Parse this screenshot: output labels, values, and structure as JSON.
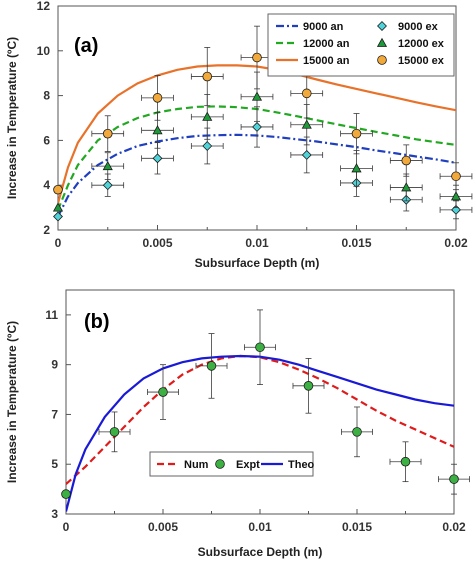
{
  "chart_data": [
    {
      "type": "line",
      "panel_label": "(a)",
      "xlabel": "Subsurface Depth (m)",
      "ylabel": "Increase in Temperature (ºC)",
      "xlim": [
        0,
        0.02
      ],
      "ylim": [
        2,
        12
      ],
      "x_ticks": [
        0,
        0.005,
        0.01,
        0.015,
        0.02
      ],
      "x_tick_labels": [
        "0",
        "0.005",
        "0.01",
        "0.015",
        "0.02"
      ],
      "y_ticks": [
        2,
        4,
        6,
        8,
        10,
        12
      ],
      "y_tick_labels": [
        "2",
        "4",
        "6",
        "8",
        "10",
        "12"
      ],
      "legend_position": "top-right",
      "legend_columns": 2,
      "series": [
        {
          "name": "9000 an",
          "kind": "line",
          "color": "#1f3fbf",
          "dash": "8,3,2,3",
          "x": [
            0,
            0.0005,
            0.001,
            0.002,
            0.003,
            0.004,
            0.005,
            0.006,
            0.007,
            0.008,
            0.009,
            0.01,
            0.011,
            0.012,
            0.013,
            0.014,
            0.015,
            0.016,
            0.017,
            0.018,
            0.019,
            0.02
          ],
          "y": [
            2.6,
            3.5,
            4.1,
            4.9,
            5.4,
            5.75,
            5.95,
            6.1,
            6.2,
            6.23,
            6.25,
            6.22,
            6.15,
            6.05,
            5.95,
            5.82,
            5.7,
            5.55,
            5.42,
            5.28,
            5.15,
            5.0
          ]
        },
        {
          "name": "12000 an",
          "kind": "line",
          "color": "#22a822",
          "dash": "7,4",
          "x": [
            0,
            0.0005,
            0.001,
            0.002,
            0.003,
            0.004,
            0.005,
            0.006,
            0.007,
            0.008,
            0.009,
            0.01,
            0.011,
            0.012,
            0.013,
            0.014,
            0.015,
            0.016,
            0.017,
            0.018,
            0.019,
            0.02
          ],
          "y": [
            2.9,
            4.0,
            4.9,
            6.0,
            6.6,
            7.0,
            7.25,
            7.4,
            7.5,
            7.52,
            7.48,
            7.4,
            7.25,
            7.08,
            6.9,
            6.72,
            6.55,
            6.38,
            6.22,
            6.05,
            5.92,
            5.8
          ]
        },
        {
          "name": "15000 an",
          "kind": "line",
          "color": "#e8722a",
          "dash": "",
          "x": [
            0,
            0.0005,
            0.001,
            0.002,
            0.003,
            0.004,
            0.005,
            0.006,
            0.007,
            0.008,
            0.009,
            0.01,
            0.011,
            0.012,
            0.013,
            0.014,
            0.015,
            0.016,
            0.017,
            0.018,
            0.019,
            0.02
          ],
          "y": [
            3.2,
            4.8,
            5.9,
            7.2,
            8.0,
            8.55,
            8.9,
            9.15,
            9.3,
            9.35,
            9.35,
            9.3,
            9.15,
            8.95,
            8.72,
            8.5,
            8.3,
            8.1,
            7.9,
            7.7,
            7.52,
            7.35
          ]
        },
        {
          "name": "9000 ex",
          "kind": "points",
          "marker": "diamond",
          "color": "#4fd3d8",
          "x": [
            0,
            0.0025,
            0.005,
            0.0075,
            0.01,
            0.0125,
            0.015,
            0.0175,
            0.02
          ],
          "y": [
            2.6,
            4.0,
            5.2,
            5.75,
            6.6,
            5.35,
            4.1,
            3.35,
            2.9
          ],
          "xerr": [
            0,
            0.0008,
            0.0008,
            0.0008,
            0.0008,
            0.0008,
            0.0008,
            0.0008,
            0.0008
          ],
          "yerr": [
            0,
            0.5,
            0.7,
            0.8,
            0.9,
            0.8,
            0.6,
            0.5,
            0.4
          ]
        },
        {
          "name": "12000 ex",
          "kind": "points",
          "marker": "triangle",
          "color": "#1f9a3a",
          "x": [
            0,
            0.0025,
            0.005,
            0.0075,
            0.01,
            0.0125,
            0.015,
            0.0175,
            0.02
          ],
          "y": [
            3.0,
            4.85,
            6.45,
            7.05,
            7.95,
            6.7,
            4.75,
            3.9,
            3.5
          ],
          "xerr": [
            0,
            0.0008,
            0.0008,
            0.0008,
            0.0008,
            0.0008,
            0.0008,
            0.0008,
            0.0008
          ],
          "yerr": [
            0,
            0.6,
            0.8,
            1.0,
            1.1,
            0.9,
            0.8,
            0.6,
            0.5
          ]
        },
        {
          "name": "15000 ex",
          "kind": "points",
          "marker": "circle",
          "color": "#f2a93b",
          "x": [
            0,
            0.0025,
            0.005,
            0.0075,
            0.01,
            0.0125,
            0.015,
            0.0175,
            0.02
          ],
          "y": [
            3.8,
            6.3,
            7.9,
            8.85,
            9.7,
            8.1,
            6.3,
            5.1,
            4.4
          ],
          "xerr": [
            0,
            0.0008,
            0.0008,
            0.0008,
            0.0008,
            0.0008,
            0.0008,
            0.0008,
            0.0008
          ],
          "yerr": [
            0,
            0.8,
            1.0,
            1.3,
            1.4,
            1.1,
            0.9,
            0.7,
            0.6
          ]
        }
      ]
    },
    {
      "type": "line",
      "panel_label": "(b)",
      "xlabel": "Subsurface Depth (m)",
      "ylabel": "Increase in Temperature (ºC)",
      "xlim": [
        0,
        0.02
      ],
      "ylim": [
        3,
        12
      ],
      "x_ticks": [
        0,
        0.005,
        0.01,
        0.015,
        0.02
      ],
      "x_tick_labels": [
        "0",
        "0.005",
        "0.01",
        "0.015",
        "0.02"
      ],
      "y_ticks": [
        3,
        5,
        7,
        9,
        11
      ],
      "y_tick_labels": [
        "3",
        "5",
        "7",
        "9",
        "11"
      ],
      "legend_position": "center-left",
      "legend_columns": 3,
      "series": [
        {
          "name": "Num",
          "kind": "line",
          "color": "#e01b1b",
          "dash": "7,4",
          "x": [
            0,
            0.001,
            0.002,
            0.003,
            0.004,
            0.005,
            0.006,
            0.007,
            0.008,
            0.009,
            0.01,
            0.011,
            0.012,
            0.013,
            0.014,
            0.015,
            0.016,
            0.017,
            0.018,
            0.019,
            0.02
          ],
          "y": [
            4.2,
            4.9,
            5.7,
            6.5,
            7.3,
            8.0,
            8.6,
            9.0,
            9.25,
            9.35,
            9.3,
            9.1,
            8.8,
            8.45,
            8.05,
            7.6,
            7.15,
            6.75,
            6.4,
            6.05,
            5.7
          ]
        },
        {
          "name": "Expt",
          "kind": "points",
          "marker": "circle",
          "color": "#3cb043",
          "x": [
            0,
            0.0025,
            0.005,
            0.0075,
            0.01,
            0.0125,
            0.015,
            0.0175,
            0.02
          ],
          "y": [
            3.8,
            6.3,
            7.9,
            8.95,
            9.7,
            8.15,
            6.3,
            5.1,
            4.4
          ],
          "xerr": [
            0,
            0.0008,
            0.0008,
            0.0008,
            0.0008,
            0.0008,
            0.0008,
            0.0008,
            0.0008
          ],
          "yerr": [
            0,
            0.8,
            1.1,
            1.3,
            1.5,
            1.1,
            1.0,
            0.8,
            0.6
          ]
        },
        {
          "name": "Theo",
          "kind": "line",
          "color": "#1a1ad6",
          "dash": "",
          "x": [
            0,
            0.0005,
            0.001,
            0.002,
            0.003,
            0.004,
            0.005,
            0.006,
            0.007,
            0.008,
            0.009,
            0.01,
            0.011,
            0.012,
            0.013,
            0.014,
            0.015,
            0.016,
            0.017,
            0.018,
            0.019,
            0.02
          ],
          "y": [
            3.1,
            4.6,
            5.6,
            6.9,
            7.8,
            8.45,
            8.85,
            9.1,
            9.25,
            9.32,
            9.35,
            9.32,
            9.2,
            9.0,
            8.75,
            8.5,
            8.25,
            8.0,
            7.8,
            7.6,
            7.45,
            7.35
          ]
        }
      ]
    }
  ]
}
